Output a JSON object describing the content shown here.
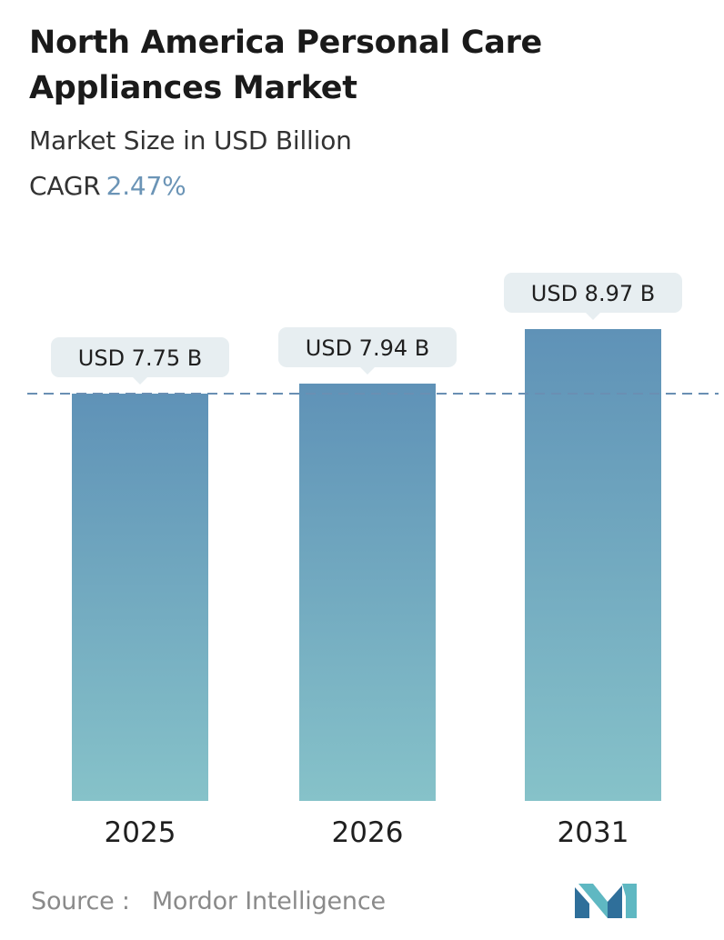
{
  "header": {
    "title": "North America Personal Care Appliances Market",
    "subtitle": "Market Size in USD Billion",
    "cagr_label": "CAGR",
    "cagr_value": "2.47%"
  },
  "chart_data": {
    "type": "bar",
    "categories": [
      "2025",
      "2026",
      "2031"
    ],
    "values": [
      7.75,
      7.94,
      8.97
    ],
    "value_labels": [
      "USD 7.75 B",
      "USD 7.94 B",
      "USD 8.97 B"
    ],
    "title": "North America Personal Care Appliances Market",
    "subtitle": "Market Size in USD Billion",
    "xlabel": "",
    "ylabel": "",
    "reference_line": {
      "value": 7.75,
      "style": "dashed"
    },
    "grid": false,
    "legend": "none"
  },
  "footer": {
    "source_label": "Source :",
    "source_value": "Mordor Intelligence"
  },
  "logo": {
    "icon": "mordor-intelligence-logo-icon"
  },
  "colors": {
    "bar_top": "#5f92b7",
    "bar_bottom": "#86c2c9",
    "callout_bg": "#e7eef1",
    "dashed_line": "#6a8fb3",
    "cagr_value": "#6b94b6",
    "logo_dark": "#2f6f9a",
    "logo_light": "#5fb8c2"
  }
}
